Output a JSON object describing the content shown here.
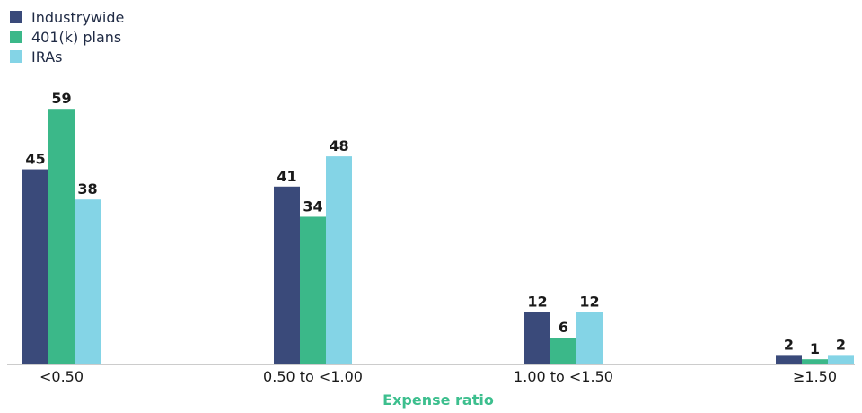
{
  "chart_data": {
    "type": "bar",
    "categories": [
      "<0.50",
      "0.50 to <1.00",
      "1.00 to <1.50",
      "≥1.50"
    ],
    "series": [
      {
        "name": "Industrywide",
        "values": [
          45,
          41,
          12,
          2
        ],
        "color": "#3a4a7a"
      },
      {
        "name": "401(k) plans",
        "values": [
          59,
          34,
          6,
          1
        ],
        "color": "#3bb889"
      },
      {
        "name": "IRAs",
        "values": [
          38,
          48,
          12,
          2
        ],
        "color": "#84d4e6"
      }
    ],
    "xlabel": "Expense ratio",
    "ylabel": "",
    "ylim": [
      0,
      62
    ],
    "grid": false,
    "legend": "top-left",
    "colors": {
      "axis_title": "#3dbf8e",
      "baseline": "#cccccc"
    }
  }
}
